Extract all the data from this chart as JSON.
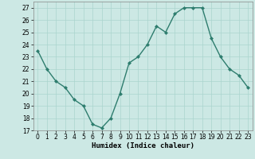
{
  "x": [
    0,
    1,
    2,
    3,
    4,
    5,
    6,
    7,
    8,
    9,
    10,
    11,
    12,
    13,
    14,
    15,
    16,
    17,
    18,
    19,
    20,
    21,
    22,
    23
  ],
  "y": [
    23.5,
    22.0,
    21.0,
    20.5,
    19.5,
    19.0,
    17.5,
    17.2,
    18.0,
    20.0,
    22.5,
    23.0,
    24.0,
    25.5,
    25.0,
    26.5,
    27.0,
    27.0,
    27.0,
    24.5,
    23.0,
    22.0,
    21.5,
    20.5
  ],
  "line_color": "#2e7d6e",
  "marker": "D",
  "marker_size": 2.0,
  "bg_color": "#cce8e4",
  "grid_color": "#aad4ce",
  "xlabel": "Humidex (Indice chaleur)",
  "ylim": [
    17,
    27.5
  ],
  "yticks": [
    17,
    18,
    19,
    20,
    21,
    22,
    23,
    24,
    25,
    26,
    27
  ],
  "xlim": [
    -0.5,
    23.5
  ],
  "xticks": [
    0,
    1,
    2,
    3,
    4,
    5,
    6,
    7,
    8,
    9,
    10,
    11,
    12,
    13,
    14,
    15,
    16,
    17,
    18,
    19,
    20,
    21,
    22,
    23
  ],
  "xlabel_fontsize": 6.5,
  "tick_fontsize": 5.5,
  "line_width": 1.0
}
